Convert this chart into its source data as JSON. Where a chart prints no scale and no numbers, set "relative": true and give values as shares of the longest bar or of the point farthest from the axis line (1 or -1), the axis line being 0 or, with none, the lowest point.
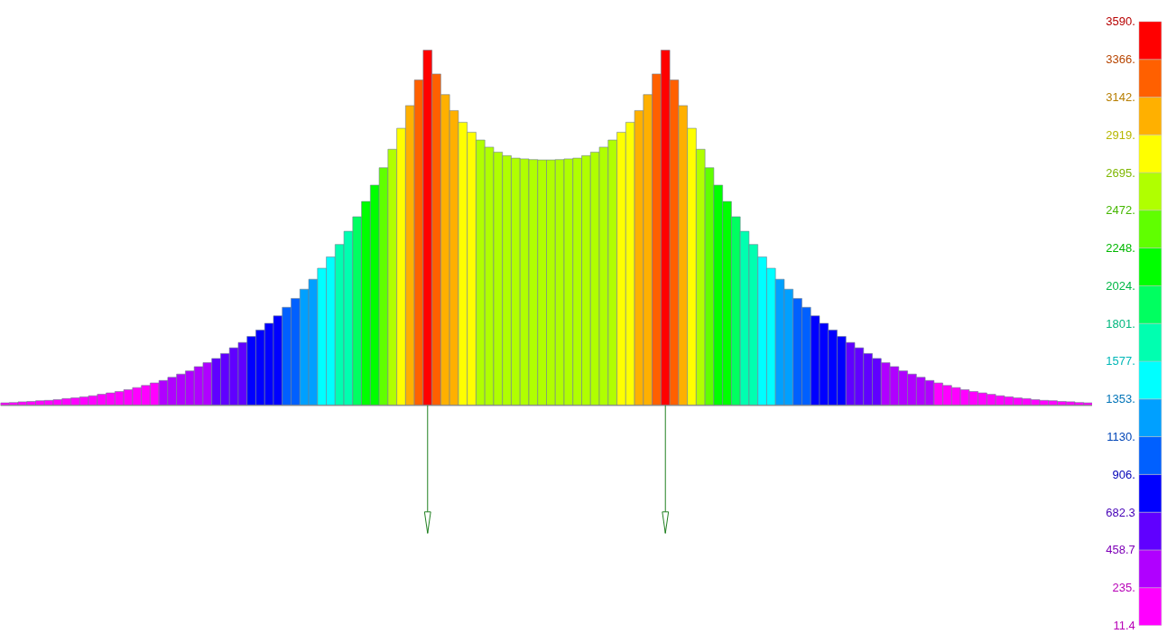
{
  "chart_data": {
    "type": "bar",
    "categories": [
      null,
      null,
      null,
      null,
      null,
      null,
      null,
      null,
      null,
      null,
      null,
      null,
      null,
      null,
      null,
      null,
      null,
      null,
      null,
      null,
      null,
      null,
      null,
      null,
      null,
      null,
      null,
      null,
      null,
      null,
      null,
      null,
      null,
      null,
      null,
      null,
      null,
      null,
      null,
      null,
      null,
      null,
      null,
      null,
      null,
      null,
      null,
      null,
      null,
      null,
      null,
      null,
      null,
      null,
      null,
      null,
      null,
      null,
      null,
      null,
      null,
      null,
      null,
      null,
      null,
      null,
      null,
      null,
      null,
      null,
      null,
      null,
      null,
      null,
      null,
      null,
      null,
      null,
      null,
      null,
      null,
      null,
      null,
      null,
      null,
      null,
      null,
      null,
      null,
      null,
      null,
      null,
      null,
      null,
      null,
      null,
      null,
      null,
      null,
      null,
      null,
      null,
      null,
      null,
      null,
      null,
      null,
      null,
      null,
      null,
      null,
      null,
      null,
      null,
      null,
      null,
      null,
      null,
      null,
      null,
      null,
      null,
      null,
      null
    ],
    "relative": true,
    "values": [
      0.007,
      0.008,
      0.01,
      0.011,
      0.013,
      0.014,
      0.016,
      0.019,
      0.021,
      0.024,
      0.027,
      0.031,
      0.035,
      0.039,
      0.044,
      0.05,
      0.056,
      0.063,
      0.07,
      0.079,
      0.088,
      0.097,
      0.109,
      0.12,
      0.132,
      0.146,
      0.162,
      0.177,
      0.194,
      0.212,
      0.231,
      0.252,
      0.276,
      0.301,
      0.327,
      0.355,
      0.386,
      0.418,
      0.453,
      0.49,
      0.531,
      0.574,
      0.62,
      0.669,
      0.721,
      0.78,
      0.844,
      0.916,
      1,
      0.933,
      0.875,
      0.83,
      0.797,
      0.769,
      0.747,
      0.727,
      0.713,
      0.703,
      0.696,
      0.694,
      0.692,
      0.691,
      0.691,
      0.692,
      0.694,
      0.696,
      0.703,
      0.713,
      0.727,
      0.747,
      0.769,
      0.797,
      0.83,
      0.875,
      0.933,
      1,
      0.916,
      0.844,
      0.78,
      0.721,
      0.669,
      0.62,
      0.574,
      0.531,
      0.49,
      0.453,
      0.418,
      0.386,
      0.355,
      0.327,
      0.301,
      0.276,
      0.252,
      0.231,
      0.212,
      0.194,
      0.177,
      0.162,
      0.146,
      0.132,
      0.12,
      0.109,
      0.097,
      0.088,
      0.079,
      0.07,
      0.063,
      0.056,
      0.05,
      0.044,
      0.039,
      0.035,
      0.031,
      0.027,
      0.024,
      0.021,
      0.019,
      0.016,
      0.014,
      0.013,
      0.011,
      0.01,
      0.008,
      0.007
    ],
    "colors": [
      "#ff00ff",
      "#ff00ff",
      "#ff00ff",
      "#ff00ff",
      "#ff00ff",
      "#ff00ff",
      "#ff00ff",
      "#ff00ff",
      "#ff00ff",
      "#ff00ff",
      "#ff00ff",
      "#ff00ff",
      "#ff00ff",
      "#ff00ff",
      "#ff00ff",
      "#ff00ff",
      "#ff00ff",
      "#ff00ff",
      "#b000ff",
      "#b000ff",
      "#b000ff",
      "#b000ff",
      "#b000ff",
      "#b000ff",
      "#6000ff",
      "#6000ff",
      "#6000ff",
      "#6000ff",
      "#0000ff",
      "#0000ff",
      "#0000ff",
      "#0000ff",
      "#0060ff",
      "#0060ff",
      "#00a0ff",
      "#00a0ff",
      "#00ffff",
      "#00ffff",
      "#00ffb0",
      "#00ffb0",
      "#00ff60",
      "#00ff00",
      "#00ff00",
      "#60ff00",
      "#b0ff00",
      "#ffff00",
      "#ffb000",
      "#ff6000",
      "#ff0000",
      "#ff6000",
      "#ffb000",
      "#ffb000",
      "#ffff00",
      "#ffff00",
      "#b0ff00",
      "#b0ff00",
      "#b0ff00",
      "#b0ff00",
      "#b0ff00",
      "#b0ff00",
      "#b0ff00",
      "#b0ff00",
      "#b0ff00",
      "#b0ff00",
      "#b0ff00",
      "#b0ff00",
      "#b0ff00",
      "#b0ff00",
      "#b0ff00",
      "#b0ff00",
      "#ffff00",
      "#ffff00",
      "#ffb000",
      "#ffb000",
      "#ff6000",
      "#ff0000",
      "#ff6000",
      "#ffb000",
      "#ffff00",
      "#b0ff00",
      "#60ff00",
      "#00ff00",
      "#00ff00",
      "#00ff60",
      "#00ffb0",
      "#00ffb0",
      "#00ffff",
      "#00ffff",
      "#00a0ff",
      "#00a0ff",
      "#0060ff",
      "#0060ff",
      "#0000ff",
      "#0000ff",
      "#0000ff",
      "#0000ff",
      "#6000ff",
      "#6000ff",
      "#6000ff",
      "#6000ff",
      "#b000ff",
      "#b000ff",
      "#b000ff",
      "#b000ff",
      "#b000ff",
      "#b000ff",
      "#ff00ff",
      "#ff00ff",
      "#ff00ff",
      "#ff00ff",
      "#ff00ff",
      "#ff00ff",
      "#ff00ff",
      "#ff00ff",
      "#ff00ff",
      "#ff00ff",
      "#ff00ff",
      "#ff00ff",
      "#ff00ff",
      "#ff00ff",
      "#ff00ff",
      "#ff00ff",
      "#ff00ff",
      "#ff00ff"
    ],
    "clim": [
      11.4,
      3590
    ],
    "cticks": [
      {
        "value": 3590,
        "label": "3590."
      },
      {
        "value": 3366,
        "label": "3366."
      },
      {
        "value": 3142,
        "label": "3142."
      },
      {
        "value": 2919,
        "label": "2919."
      },
      {
        "value": 2695,
        "label": "2695."
      },
      {
        "value": 2472,
        "label": "2472."
      },
      {
        "value": 2248,
        "label": "2248."
      },
      {
        "value": 2024,
        "label": "2024."
      },
      {
        "value": 1801,
        "label": "1801."
      },
      {
        "value": 1577,
        "label": "1577."
      },
      {
        "value": 1353,
        "label": "1353."
      },
      {
        "value": 1130,
        "label": "1130."
      },
      {
        "value": 906,
        "label": "906."
      },
      {
        "value": 682.3,
        "label": "682.3"
      },
      {
        "value": 458.7,
        "label": "458.7"
      },
      {
        "value": 235,
        "label": "235."
      },
      {
        "value": 11.4,
        "label": "11.4"
      }
    ],
    "tick_labels": false
  }
}
